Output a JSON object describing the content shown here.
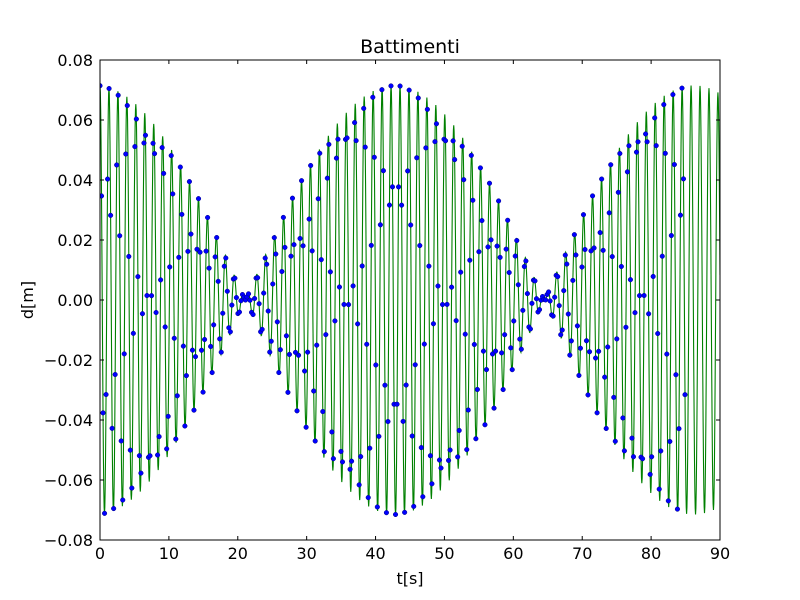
{
  "chart_data": {
    "type": "scatter",
    "title": "Battimenti",
    "xlabel": "t[s]",
    "ylabel": "d[m]",
    "xlim": [
      0,
      90
    ],
    "ylim": [
      -0.08,
      0.08
    ],
    "x_ticks": [
      0,
      10,
      20,
      30,
      40,
      50,
      60,
      70,
      80,
      90
    ],
    "x_tick_labels": [
      "0",
      "10",
      "20",
      "30",
      "40",
      "50",
      "60",
      "70",
      "80",
      "90"
    ],
    "y_ticks": [
      -0.08,
      -0.06,
      -0.04,
      -0.02,
      0.0,
      0.02,
      0.04,
      0.06,
      0.08
    ],
    "y_tick_labels": [
      "−0.08",
      "−0.06",
      "−0.04",
      "−0.02",
      "0.00",
      "0.02",
      "0.04",
      "0.06",
      "0.08"
    ],
    "grid": false,
    "legend": "none",
    "colors": {
      "fit_line": "#008000",
      "data_points": "#0000ff",
      "point_edge": "#000080"
    },
    "beat_model": {
      "envelope_amplitude": 0.0715,
      "carrier_period_s": 1.3,
      "beat_period_s": 43.4,
      "envelope_phase_s": -0.6,
      "carrier_phase_s": 0.0
    },
    "series": [
      {
        "style": "line",
        "x_range": [
          0,
          90
        ],
        "sample_step_s": 0.05
      },
      {
        "style": "points",
        "x_range": [
          0,
          85
        ],
        "sample_step_s": 0.22
      }
    ]
  }
}
